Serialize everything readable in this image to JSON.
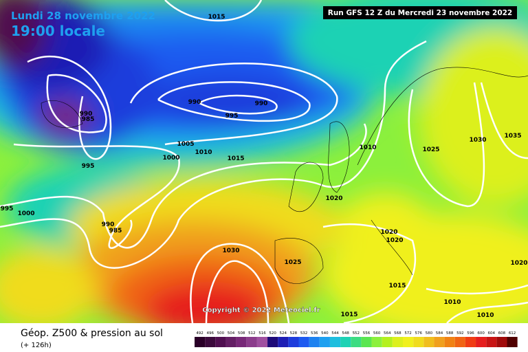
{
  "header": {
    "date": "Lundi 28 novembre 2022",
    "time": "19:00 locale",
    "run": "Run GFS 12 Z du Mercredi 23 novembre 2022"
  },
  "copyright": "Copyright © 2022 Meteociel.fr",
  "footer": {
    "title": "Géop. Z500 & pression au sol",
    "lead": "(+ 126h)"
  },
  "isobar_labels": [
    1015,
    990,
    990,
    995,
    990,
    985,
    1005,
    1010,
    1000,
    1015,
    995,
    1010,
    1025,
    1030,
    1035,
    1020,
    995,
    1000,
    990,
    985,
    1020,
    1020,
    1030,
    1025,
    1020,
    1015,
    1010,
    1015,
    1010
  ],
  "colorbar": [
    {
      "value": 492,
      "color": "#2a0028"
    },
    {
      "value": 496,
      "color": "#3c0a3c"
    },
    {
      "value": 500,
      "color": "#500f50"
    },
    {
      "value": 504,
      "color": "#641e64"
    },
    {
      "value": 508,
      "color": "#782878"
    },
    {
      "value": 512,
      "color": "#8c3c8c"
    },
    {
      "value": 516,
      "color": "#a050a0"
    },
    {
      "value": 520,
      "color": "#1e0a78"
    },
    {
      "value": 524,
      "color": "#1e1eb4"
    },
    {
      "value": 528,
      "color": "#1e3cdc"
    },
    {
      "value": 532,
      "color": "#1e5af0"
    },
    {
      "value": 536,
      "color": "#1e82f0"
    },
    {
      "value": 540,
      "color": "#1ea0f0"
    },
    {
      "value": 544,
      "color": "#1ebede"
    },
    {
      "value": 548,
      "color": "#1ed2b4"
    },
    {
      "value": 552,
      "color": "#3cdc82"
    },
    {
      "value": 556,
      "color": "#5ae650"
    },
    {
      "value": 560,
      "color": "#8cf03c"
    },
    {
      "value": 564,
      "color": "#b4f01e"
    },
    {
      "value": 568,
      "color": "#dcf01e"
    },
    {
      "value": 572,
      "color": "#f0f01e"
    },
    {
      "value": 576,
      "color": "#f0dc1e"
    },
    {
      "value": 580,
      "color": "#f0be1e"
    },
    {
      "value": 584,
      "color": "#f0a01e"
    },
    {
      "value": 588,
      "color": "#f08214"
    },
    {
      "value": 592,
      "color": "#f06414"
    },
    {
      "value": 596,
      "color": "#f03c14"
    },
    {
      "value": 600,
      "color": "#e61e1e"
    },
    {
      "value": 604,
      "color": "#c81414"
    },
    {
      "value": 608,
      "color": "#a00a0a"
    },
    {
      "value": 612,
      "color": "#500000"
    }
  ]
}
